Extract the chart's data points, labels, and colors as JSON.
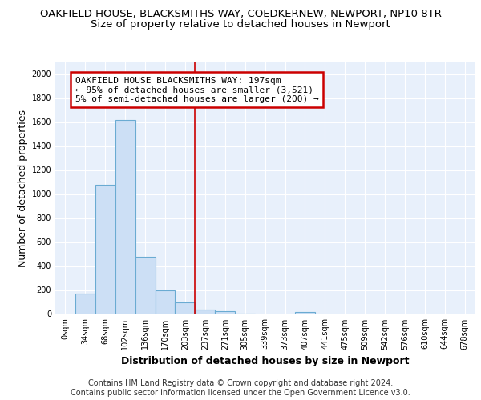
{
  "title_line1": "OAKFIELD HOUSE, BLACKSMITHS WAY, COEDKERNEW, NEWPORT, NP10 8TR",
  "title_line2": "Size of property relative to detached houses in Newport",
  "xlabel": "Distribution of detached houses by size in Newport",
  "ylabel": "Number of detached properties",
  "bar_labels": [
    "0sqm",
    "34sqm",
    "68sqm",
    "102sqm",
    "136sqm",
    "170sqm",
    "203sqm",
    "237sqm",
    "271sqm",
    "305sqm",
    "339sqm",
    "373sqm",
    "407sqm",
    "441sqm",
    "475sqm",
    "509sqm",
    "542sqm",
    "576sqm",
    "610sqm",
    "644sqm",
    "678sqm"
  ],
  "bar_values": [
    0,
    170,
    1080,
    1620,
    480,
    200,
    100,
    40,
    25,
    5,
    0,
    0,
    20,
    0,
    0,
    0,
    0,
    0,
    0,
    0,
    0
  ],
  "bar_color": "#ccdff5",
  "bar_edge_color": "#6aabd2",
  "vline_x": 6.5,
  "vline_color": "#cc0000",
  "annotation_text": "OAKFIELD HOUSE BLACKSMITHS WAY: 197sqm\n← 95% of detached houses are smaller (3,521)\n5% of semi-detached houses are larger (200) →",
  "annotation_box_color": "#ffffff",
  "annotation_box_edge": "#cc0000",
  "ylim": [
    0,
    2100
  ],
  "yticks": [
    0,
    200,
    400,
    600,
    800,
    1000,
    1200,
    1400,
    1600,
    1800,
    2000
  ],
  "footer_line1": "Contains HM Land Registry data © Crown copyright and database right 2024.",
  "footer_line2": "Contains public sector information licensed under the Open Government Licence v3.0.",
  "bg_color": "#e8f0fb",
  "title_fontsize": 9.5,
  "subtitle_fontsize": 9.5,
  "axis_label_fontsize": 9,
  "tick_fontsize": 7,
  "footer_fontsize": 7,
  "annotation_fontsize": 8
}
